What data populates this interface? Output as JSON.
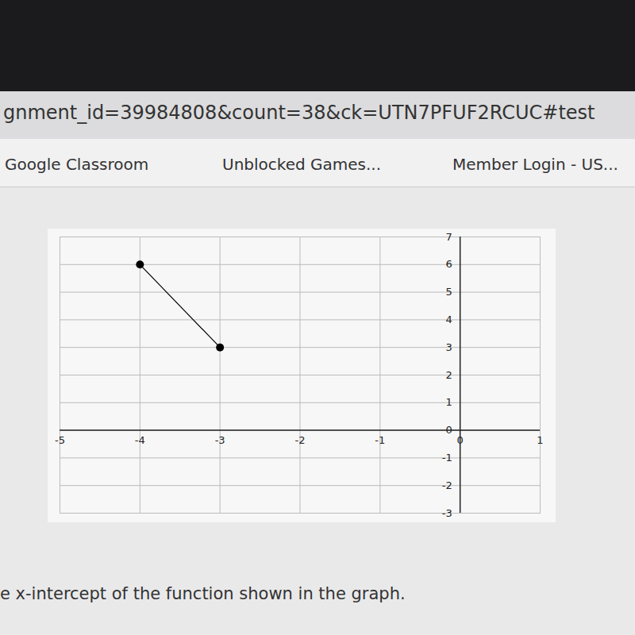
{
  "browser": {
    "url": "gnment_id=39984808&count=38&ck=UTN7PFUF2RCUC#test",
    "bookmarks": [
      "Google Classroom",
      "Unblocked Games...",
      "Member Login - US..."
    ]
  },
  "question": "e x-intercept of the function shown in the graph.",
  "chart_data": {
    "type": "line",
    "marker": "circle",
    "color": "#000000",
    "grid": true,
    "x": [
      -4,
      -3
    ],
    "values": [
      6,
      3
    ],
    "xlim": [
      -5,
      1
    ],
    "xticks": [
      -5,
      -4,
      -3,
      -2,
      -1,
      0,
      1
    ],
    "ylim": [
      -3,
      7
    ],
    "yticks": [
      -3,
      -2,
      -1,
      0,
      1,
      2,
      3,
      4,
      5,
      6,
      7
    ]
  }
}
